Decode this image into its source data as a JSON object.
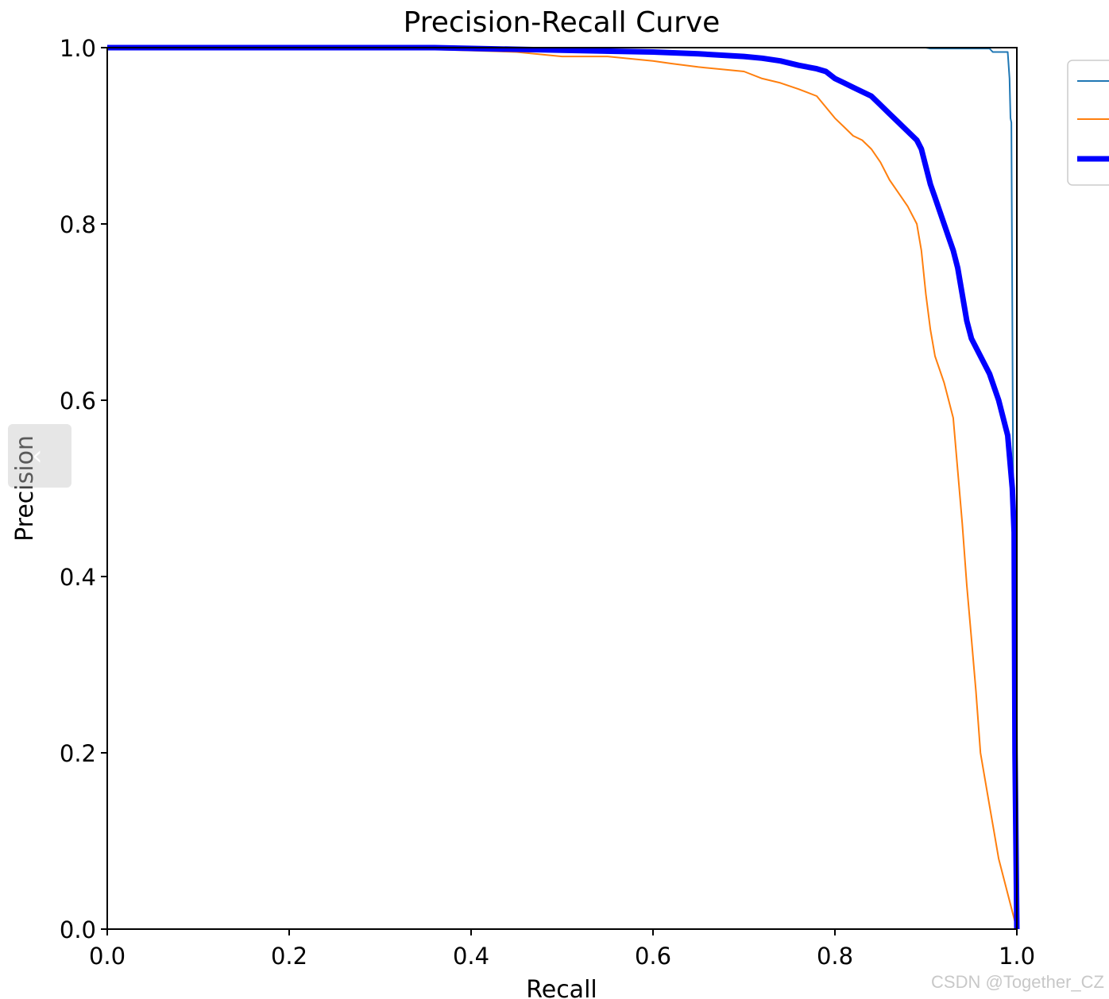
{
  "chart_data": {
    "type": "line",
    "title": "Precision-Recall Curve",
    "xlabel": "Recall",
    "ylabel": "Precision",
    "xlim": [
      0.0,
      1.0
    ],
    "ylim": [
      0.0,
      1.0
    ],
    "xticks": [
      "0.0",
      "0.2",
      "0.4",
      "0.6",
      "0.8",
      "1.0"
    ],
    "yticks": [
      "0.0",
      "0.2",
      "0.4",
      "0.6",
      "0.8",
      "1.0"
    ],
    "grid": false,
    "legend": {
      "placement": "top-right",
      "entries_text_visible": false
    },
    "series": [
      {
        "color": "#1f77b4",
        "x": [
          0.0,
          0.9,
          0.905,
          0.97,
          0.9735,
          0.99,
          0.992,
          0.993,
          0.994,
          0.996,
          0.997,
          0.998,
          1.0
        ],
        "y": [
          1.0,
          1.0,
          0.999,
          0.999,
          0.995,
          0.995,
          0.965,
          0.92,
          0.915,
          0.5,
          0.2,
          0.05,
          0.0
        ]
      },
      {
        "color": "#ff7f0e",
        "x": [
          0.0,
          0.3,
          0.45,
          0.5,
          0.55,
          0.6,
          0.62,
          0.65,
          0.68,
          0.7,
          0.72,
          0.74,
          0.76,
          0.78,
          0.8,
          0.81,
          0.82,
          0.83,
          0.84,
          0.85,
          0.86,
          0.87,
          0.88,
          0.89,
          0.895,
          0.9,
          0.905,
          0.91,
          0.92,
          0.93,
          0.935,
          0.94,
          0.945,
          0.95,
          0.955,
          0.96,
          0.965,
          0.97,
          0.975,
          0.98,
          1.0
        ],
        "y": [
          1.0,
          1.0,
          0.995,
          0.99,
          0.99,
          0.985,
          0.982,
          0.978,
          0.975,
          0.973,
          0.965,
          0.96,
          0.953,
          0.945,
          0.92,
          0.91,
          0.9,
          0.895,
          0.885,
          0.87,
          0.85,
          0.835,
          0.82,
          0.8,
          0.77,
          0.72,
          0.68,
          0.65,
          0.62,
          0.58,
          0.52,
          0.46,
          0.39,
          0.33,
          0.27,
          0.2,
          0.17,
          0.14,
          0.11,
          0.08,
          0.0
        ]
      },
      {
        "color": "#0000ff",
        "x": [
          0.0,
          0.36,
          0.5,
          0.6,
          0.65,
          0.7,
          0.72,
          0.74,
          0.76,
          0.78,
          0.79,
          0.8,
          0.81,
          0.82,
          0.83,
          0.84,
          0.85,
          0.86,
          0.87,
          0.875,
          0.88,
          0.89,
          0.895,
          0.9,
          0.905,
          0.91,
          0.915,
          0.92,
          0.925,
          0.93,
          0.935,
          0.94,
          0.945,
          0.95,
          0.96,
          0.97,
          0.98,
          0.99,
          0.995,
          0.997,
          0.998,
          1.0
        ],
        "y": [
          1.0,
          1.0,
          0.997,
          0.995,
          0.993,
          0.99,
          0.988,
          0.985,
          0.98,
          0.976,
          0.973,
          0.965,
          0.96,
          0.955,
          0.95,
          0.945,
          0.935,
          0.925,
          0.915,
          0.91,
          0.905,
          0.895,
          0.885,
          0.865,
          0.845,
          0.83,
          0.815,
          0.8,
          0.785,
          0.77,
          0.75,
          0.72,
          0.69,
          0.67,
          0.65,
          0.63,
          0.6,
          0.56,
          0.5,
          0.45,
          0.2,
          0.0
        ]
      }
    ]
  },
  "watermark": "CSDN @Together_CZ",
  "nav_tab": {
    "icon": "chevron-left-icon",
    "glyph": "‹"
  }
}
